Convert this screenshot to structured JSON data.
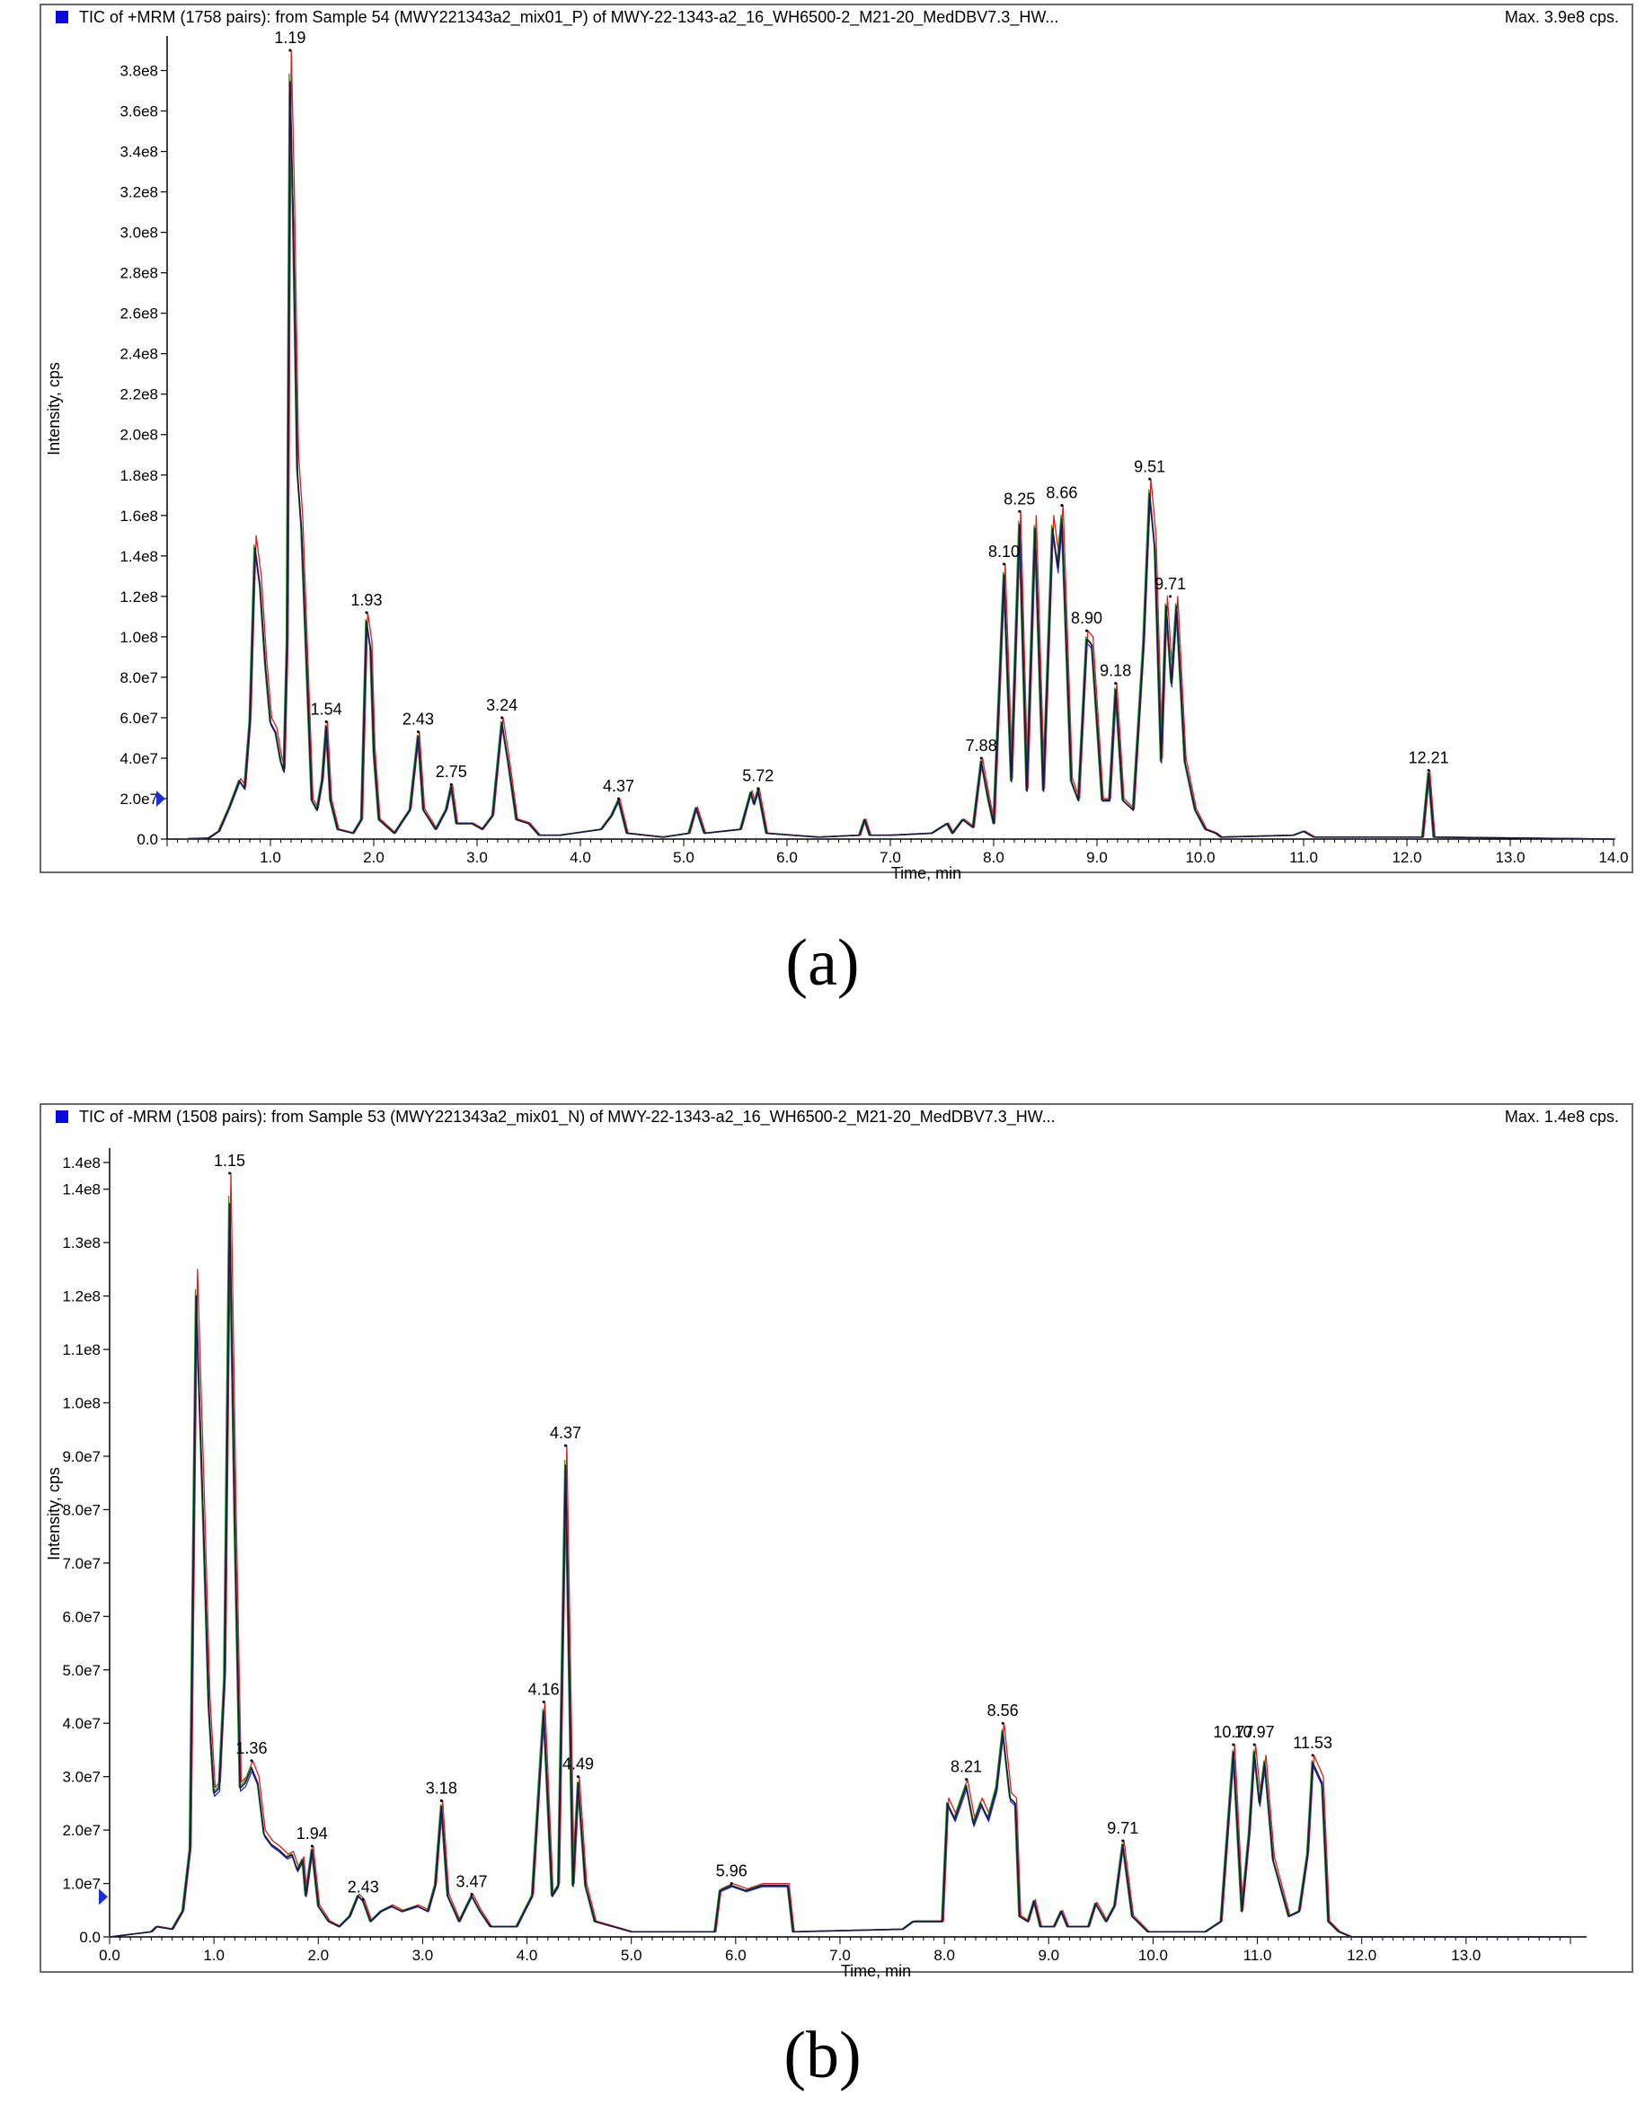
{
  "chart_data": [
    {
      "type": "line",
      "panel": "a",
      "caption": "(a)",
      "title": "TIC of +MRM (1758 pairs): from Sample 54 (MWY221343a2_mix01_P) of MWY-22-1343-a2_16_WH6500-2_M21-20_MedDBV7.3_HW...",
      "max_label": "Max. 3.9e8 cps.",
      "xlabel": "Time, min",
      "ylabel": "Intensity, cps",
      "xlim": [
        0,
        14.0
      ],
      "ylim": [
        0,
        390000000.0
      ],
      "x_ticks": [
        "1.0",
        "2.0",
        "3.0",
        "4.0",
        "5.0",
        "6.0",
        "7.0",
        "8.0",
        "9.0",
        "10.0",
        "11.0",
        "12.0",
        "13.0",
        "14.0"
      ],
      "x_tick_values": [
        1,
        2,
        3,
        4,
        5,
        6,
        7,
        8,
        9,
        10,
        11,
        12,
        13,
        14
      ],
      "y_ticks": [
        "0.0",
        "2.0e7",
        "4.0e7",
        "6.0e7",
        "8.0e7",
        "1.0e8",
        "1.2e8",
        "1.4e8",
        "1.6e8",
        "1.8e8",
        "2.0e8",
        "2.2e8",
        "2.4e8",
        "2.6e8",
        "2.8e8",
        "3.0e8",
        "3.2e8",
        "3.4e8",
        "3.6e8",
        "3.8e8"
      ],
      "y_tick_values": [
        0,
        20000000.0,
        40000000.0,
        60000000.0,
        80000000.0,
        100000000.0,
        120000000.0,
        140000000.0,
        160000000.0,
        180000000.0,
        200000000.0,
        220000000.0,
        240000000.0,
        260000000.0,
        280000000.0,
        300000000.0,
        320000000.0,
        340000000.0,
        360000000.0,
        380000000.0
      ],
      "baseline_marker_value": 20000000.0,
      "series_colors": [
        "#d42020",
        "#2a9a2a",
        "#2a2ad8",
        "#1a1a3a"
      ],
      "peaks": [
        {
          "label": "1.19",
          "x": 1.19,
          "y": 390000000.0
        },
        {
          "label": "1.54",
          "x": 1.54,
          "y": 58000000.0
        },
        {
          "label": "1.93",
          "x": 1.93,
          "y": 112000000.0
        },
        {
          "label": "2.43",
          "x": 2.43,
          "y": 53000000.0
        },
        {
          "label": "2.75",
          "x": 2.75,
          "y": 27000000.0
        },
        {
          "label": "3.24",
          "x": 3.24,
          "y": 60000000.0
        },
        {
          "label": "4.37",
          "x": 4.37,
          "y": 20000000.0
        },
        {
          "label": "5.72",
          "x": 5.72,
          "y": 25000000.0
        },
        {
          "label": "7.88",
          "x": 7.88,
          "y": 40000000.0
        },
        {
          "label": "8.10",
          "x": 8.1,
          "y": 136000000.0
        },
        {
          "label": "8.25",
          "x": 8.25,
          "y": 162000000.0
        },
        {
          "label": "8.66",
          "x": 8.66,
          "y": 165000000.0
        },
        {
          "label": "8.90",
          "x": 8.9,
          "y": 103000000.0
        },
        {
          "label": "9.18",
          "x": 9.18,
          "y": 77000000.0
        },
        {
          "label": "9.51",
          "x": 9.51,
          "y": 178000000.0
        },
        {
          "label": "9.71",
          "x": 9.71,
          "y": 120000000.0
        },
        {
          "label": "12.21",
          "x": 12.21,
          "y": 34000000.0
        }
      ],
      "profile": [
        [
          0.2,
          200000.0
        ],
        [
          0.4,
          500000.0
        ],
        [
          0.5,
          4000000.0
        ],
        [
          0.6,
          16000000.0
        ],
        [
          0.7,
          30000000.0
        ],
        [
          0.75,
          26000000.0
        ],
        [
          0.8,
          60000000.0
        ],
        [
          0.85,
          150000000.0
        ],
        [
          0.9,
          130000000.0
        ],
        [
          0.95,
          90000000.0
        ],
        [
          1.0,
          60000000.0
        ],
        [
          1.05,
          55000000.0
        ],
        [
          1.1,
          40000000.0
        ],
        [
          1.13,
          35000000.0
        ],
        [
          1.16,
          100000000.0
        ],
        [
          1.19,
          390000000.0
        ],
        [
          1.22,
          320000000.0
        ],
        [
          1.26,
          190000000.0
        ],
        [
          1.3,
          160000000.0
        ],
        [
          1.35,
          90000000.0
        ],
        [
          1.4,
          20000000.0
        ],
        [
          1.45,
          15000000.0
        ],
        [
          1.5,
          30000000.0
        ],
        [
          1.54,
          58000000.0
        ],
        [
          1.58,
          20000000.0
        ],
        [
          1.65,
          5000000.0
        ],
        [
          1.8,
          3000000.0
        ],
        [
          1.88,
          10000000.0
        ],
        [
          1.93,
          112000000.0
        ],
        [
          1.97,
          98000000.0
        ],
        [
          2.0,
          45000000.0
        ],
        [
          2.05,
          10000000.0
        ],
        [
          2.2,
          3000000.0
        ],
        [
          2.35,
          15000000.0
        ],
        [
          2.43,
          53000000.0
        ],
        [
          2.48,
          15000000.0
        ],
        [
          2.6,
          5000000.0
        ],
        [
          2.7,
          15000000.0
        ],
        [
          2.75,
          27000000.0
        ],
        [
          2.8,
          8000000.0
        ],
        [
          2.95,
          8000000.0
        ],
        [
          3.05,
          5000000.0
        ],
        [
          3.15,
          12000000.0
        ],
        [
          3.24,
          60000000.0
        ],
        [
          3.3,
          40000000.0
        ],
        [
          3.38,
          10000000.0
        ],
        [
          3.5,
          8000000.0
        ],
        [
          3.6,
          2000000.0
        ],
        [
          3.8,
          2000000.0
        ],
        [
          4.2,
          5000000.0
        ],
        [
          4.3,
          12000000.0
        ],
        [
          4.37,
          20000000.0
        ],
        [
          4.45,
          3000000.0
        ],
        [
          4.8,
          1000000.0
        ],
        [
          5.05,
          3000000.0
        ],
        [
          5.12,
          16000000.0
        ],
        [
          5.2,
          3000000.0
        ],
        [
          5.55,
          5000000.0
        ],
        [
          5.65,
          24000000.0
        ],
        [
          5.68,
          18000000.0
        ],
        [
          5.72,
          25000000.0
        ],
        [
          5.8,
          3000000.0
        ],
        [
          6.3,
          1000000.0
        ],
        [
          6.7,
          2000000.0
        ],
        [
          6.75,
          10000000.0
        ],
        [
          6.8,
          2000000.0
        ],
        [
          7.0,
          2000000.0
        ],
        [
          7.4,
          3000000.0
        ],
        [
          7.55,
          8000000.0
        ],
        [
          7.6,
          3000000.0
        ],
        [
          7.7,
          10000000.0
        ],
        [
          7.8,
          6000000.0
        ],
        [
          7.88,
          40000000.0
        ],
        [
          7.95,
          20000000.0
        ],
        [
          8.0,
          8000000.0
        ],
        [
          8.1,
          136000000.0
        ],
        [
          8.17,
          30000000.0
        ],
        [
          8.25,
          162000000.0
        ],
        [
          8.32,
          25000000.0
        ],
        [
          8.4,
          160000000.0
        ],
        [
          8.48,
          25000000.0
        ],
        [
          8.57,
          160000000.0
        ],
        [
          8.62,
          140000000.0
        ],
        [
          8.66,
          165000000.0
        ],
        [
          8.75,
          30000000.0
        ],
        [
          8.82,
          20000000.0
        ],
        [
          8.9,
          103000000.0
        ],
        [
          8.95,
          100000000.0
        ],
        [
          9.05,
          20000000.0
        ],
        [
          9.12,
          20000000.0
        ],
        [
          9.18,
          77000000.0
        ],
        [
          9.25,
          20000000.0
        ],
        [
          9.35,
          15000000.0
        ],
        [
          9.45,
          100000000.0
        ],
        [
          9.51,
          178000000.0
        ],
        [
          9.56,
          150000000.0
        ],
        [
          9.62,
          40000000.0
        ],
        [
          9.67,
          120000000.0
        ],
        [
          9.72,
          80000000.0
        ],
        [
          9.77,
          120000000.0
        ],
        [
          9.85,
          40000000.0
        ],
        [
          9.95,
          15000000.0
        ],
        [
          10.05,
          5000000.0
        ],
        [
          10.15,
          3000000.0
        ],
        [
          10.2,
          1000000.0
        ],
        [
          10.9,
          2000000.0
        ],
        [
          11.0,
          4000000.0
        ],
        [
          11.1,
          1000000.0
        ],
        [
          12.15,
          1000000.0
        ],
        [
          12.21,
          34000000.0
        ],
        [
          12.26,
          1000000.0
        ],
        [
          14.0,
          0.0
        ]
      ]
    },
    {
      "type": "line",
      "panel": "b",
      "caption": "(b)",
      "title": "TIC of -MRM (1508 pairs): from Sample 53 (MWY221343a2_mix01_N) of MWY-22-1343-a2_16_WH6500-2_M21-20_MedDBV7.3_HW...",
      "max_label": "Max. 1.4e8 cps.",
      "xlabel": "Time, min",
      "ylabel": "Intensity, cps",
      "xlim": [
        0,
        14.0
      ],
      "ylim": [
        0,
        145000000.0
      ],
      "x_ticks": [
        "0.0",
        "1.0",
        "2.0",
        "3.0",
        "4.0",
        "5.0",
        "6.0",
        "7.0",
        "8.0",
        "9.0",
        "10.0",
        "11.0",
        "12.0",
        "13.0"
      ],
      "x_tick_values": [
        0,
        1,
        2,
        3,
        4,
        5,
        6,
        7,
        8,
        9,
        10,
        11,
        12,
        13
      ],
      "y_ticks": [
        "0.0",
        "1.0e7",
        "2.0e7",
        "3.0e7",
        "4.0e7",
        "5.0e7",
        "6.0e7",
        "7.0e7",
        "8.0e7",
        "9.0e7",
        "1.0e8",
        "1.1e8",
        "1.2e8",
        "1.3e8",
        "1.4e8",
        "1.4e8"
      ],
      "y_tick_values": [
        0,
        10000000.0,
        20000000.0,
        30000000.0,
        40000000.0,
        50000000.0,
        60000000.0,
        70000000.0,
        80000000.0,
        90000000.0,
        100000000.0,
        110000000.0,
        120000000.0,
        130000000.0,
        140000000.0,
        145000000.0
      ],
      "baseline_marker_value": 7500000.0,
      "series_colors": [
        "#d42020",
        "#2a9a2a",
        "#2a2ad8",
        "#1a1a3a"
      ],
      "peaks": [
        {
          "label": "1.15",
          "x": 1.15,
          "y": 143000000.0
        },
        {
          "label": "1.36",
          "x": 1.36,
          "y": 33000000.0
        },
        {
          "label": "1.94",
          "x": 1.94,
          "y": 17000000.0
        },
        {
          "label": "2.43",
          "x": 2.43,
          "y": 7000000.0
        },
        {
          "label": "3.18",
          "x": 3.18,
          "y": 25500000.0
        },
        {
          "label": "3.47",
          "x": 3.47,
          "y": 8000000.0
        },
        {
          "label": "4.16",
          "x": 4.16,
          "y": 44000000.0
        },
        {
          "label": "4.37",
          "x": 4.37,
          "y": 92000000.0
        },
        {
          "label": "4.49",
          "x": 4.49,
          "y": 30000000.0
        },
        {
          "label": "5.96",
          "x": 5.96,
          "y": 10000000.0
        },
        {
          "label": "8.21",
          "x": 8.21,
          "y": 29500000.0
        },
        {
          "label": "8.56",
          "x": 8.56,
          "y": 40000000.0
        },
        {
          "label": "9.71",
          "x": 9.71,
          "y": 18000000.0
        },
        {
          "label": "10.77",
          "x": 10.77,
          "y": 36000000.0
        },
        {
          "label": "10.97",
          "x": 10.97,
          "y": 36000000.0
        },
        {
          "label": "11.53",
          "x": 11.53,
          "y": 34000000.0
        }
      ],
      "profile": [
        [
          0.0,
          0.0
        ],
        [
          0.4,
          1000000.0
        ],
        [
          0.45,
          2000000.0
        ],
        [
          0.6,
          1500000.0
        ],
        [
          0.7,
          5000000.0
        ],
        [
          0.77,
          17000000.0
        ],
        [
          0.83,
          125000000.0
        ],
        [
          0.9,
          80000000.0
        ],
        [
          0.95,
          45000000.0
        ],
        [
          1.0,
          28000000.0
        ],
        [
          1.05,
          29000000.0
        ],
        [
          1.1,
          50000000.0
        ],
        [
          1.15,
          143000000.0
        ],
        [
          1.2,
          80000000.0
        ],
        [
          1.25,
          29000000.0
        ],
        [
          1.3,
          30000000.0
        ],
        [
          1.36,
          33000000.0
        ],
        [
          1.42,
          30000000.0
        ],
        [
          1.48,
          20000000.0
        ],
        [
          1.55,
          18000000.0
        ],
        [
          1.62,
          17000000.0
        ],
        [
          1.7,
          15500000.0
        ],
        [
          1.75,
          16000000.0
        ],
        [
          1.8,
          13000000.0
        ],
        [
          1.85,
          15000000.0
        ],
        [
          1.88,
          8000000.0
        ],
        [
          1.94,
          17000000.0
        ],
        [
          2.0,
          6000000.0
        ],
        [
          2.1,
          3000000.0
        ],
        [
          2.2,
          2000000.0
        ],
        [
          2.3,
          4000000.0
        ],
        [
          2.38,
          8000000.0
        ],
        [
          2.43,
          7000000.0
        ],
        [
          2.5,
          3000000.0
        ],
        [
          2.6,
          5000000.0
        ],
        [
          2.7,
          6000000.0
        ],
        [
          2.8,
          5000000.0
        ],
        [
          2.95,
          6000000.0
        ],
        [
          3.05,
          5000000.0
        ],
        [
          3.12,
          10000000.0
        ],
        [
          3.18,
          25500000.0
        ],
        [
          3.24,
          8000000.0
        ],
        [
          3.35,
          3000000.0
        ],
        [
          3.47,
          8000000.0
        ],
        [
          3.55,
          5000000.0
        ],
        [
          3.65,
          2000000.0
        ],
        [
          3.9,
          2000000.0
        ],
        [
          4.05,
          8000000.0
        ],
        [
          4.16,
          44000000.0
        ],
        [
          4.24,
          8000000.0
        ],
        [
          4.3,
          10000000.0
        ],
        [
          4.37,
          92000000.0
        ],
        [
          4.44,
          10000000.0
        ],
        [
          4.49,
          30000000.0
        ],
        [
          4.56,
          10000000.0
        ],
        [
          4.65,
          3000000.0
        ],
        [
          5.0,
          1000000.0
        ],
        [
          5.8,
          1000000.0
        ],
        [
          5.85,
          9000000.0
        ],
        [
          5.96,
          10000000.0
        ],
        [
          6.1,
          9000000.0
        ],
        [
          6.25,
          10000000.0
        ],
        [
          6.5,
          10000000.0
        ],
        [
          6.55,
          1000000.0
        ],
        [
          7.6,
          1500000.0
        ],
        [
          7.7,
          3000000.0
        ],
        [
          7.98,
          3000000.0
        ],
        [
          8.03,
          26000000.0
        ],
        [
          8.1,
          23000000.0
        ],
        [
          8.21,
          29500000.0
        ],
        [
          8.28,
          22000000.0
        ],
        [
          8.35,
          26000000.0
        ],
        [
          8.42,
          23000000.0
        ],
        [
          8.5,
          29000000.0
        ],
        [
          8.56,
          40000000.0
        ],
        [
          8.63,
          27000000.0
        ],
        [
          8.68,
          26000000.0
        ],
        [
          8.72,
          4000000.0
        ],
        [
          8.8,
          3000000.0
        ],
        [
          8.86,
          7000000.0
        ],
        [
          8.92,
          2000000.0
        ],
        [
          9.05,
          2000000.0
        ],
        [
          9.12,
          5000000.0
        ],
        [
          9.18,
          2000000.0
        ],
        [
          9.38,
          2000000.0
        ],
        [
          9.45,
          6500000.0
        ],
        [
          9.55,
          3000000.0
        ],
        [
          9.63,
          6000000.0
        ],
        [
          9.71,
          18000000.0
        ],
        [
          9.8,
          4000000.0
        ],
        [
          9.95,
          1000000.0
        ],
        [
          10.5,
          1000000.0
        ],
        [
          10.65,
          3000000.0
        ],
        [
          10.77,
          36000000.0
        ],
        [
          10.85,
          5000000.0
        ],
        [
          10.92,
          20000000.0
        ],
        [
          10.97,
          36000000.0
        ],
        [
          11.02,
          26000000.0
        ],
        [
          11.07,
          34000000.0
        ],
        [
          11.15,
          15000000.0
        ],
        [
          11.3,
          4000000.0
        ],
        [
          11.4,
          5000000.0
        ],
        [
          11.48,
          16000000.0
        ],
        [
          11.53,
          34000000.0
        ],
        [
          11.62,
          30000000.0
        ],
        [
          11.68,
          3000000.0
        ],
        [
          11.78,
          1000000.0
        ],
        [
          11.9,
          0.0
        ],
        [
          14.0,
          0.0
        ]
      ]
    }
  ]
}
